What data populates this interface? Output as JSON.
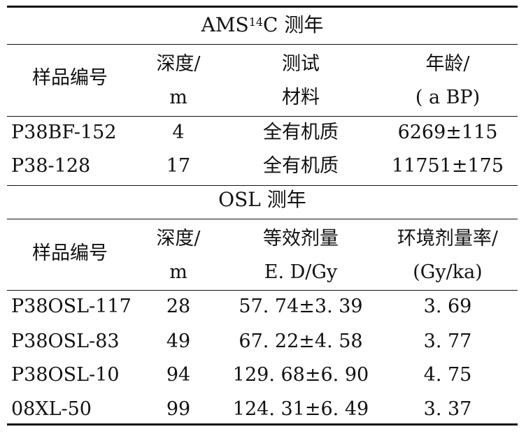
{
  "ams": {
    "title_pre": "AMS",
    "title_sup": "14",
    "title_post": "C 测年",
    "headers": {
      "col1": "样品编号",
      "col2_line1": "深度/",
      "col2_line2": "m",
      "col3_line1": "测试",
      "col3_line2": "材料",
      "col4_line1": "年龄/",
      "col4_line2": "( a BP)"
    },
    "rows": [
      {
        "sample": "P38BF-152",
        "depth": "4",
        "material": "全有机质",
        "age": "6269±115"
      },
      {
        "sample": "P38-128",
        "depth": "17",
        "material": "全有机质",
        "age": "11751±175"
      }
    ]
  },
  "osl": {
    "title": "OSL 测年",
    "headers": {
      "col1": "样品编号",
      "col2_line1": "深度/",
      "col2_line2": "m",
      "col3_line1": "等效剂量",
      "col3_line2": "E. D/Gy",
      "col4_line1": "环境剂量率/",
      "col4_line2": "(Gy/ka)"
    },
    "rows": [
      {
        "sample": "P38OSL-117",
        "depth": "28",
        "ed": "57. 74±3. 39",
        "rate": "3. 69"
      },
      {
        "sample": "P38OSL-83",
        "depth": "49",
        "ed": "67. 22±4. 58",
        "rate": "3. 77"
      },
      {
        "sample": "P38OSL-10",
        "depth": "94",
        "ed": "129. 68±6. 90",
        "rate": "4. 75"
      },
      {
        "sample": "08XL-50",
        "depth": "99",
        "ed": "124. 31±6. 49",
        "rate": "3. 37"
      }
    ]
  }
}
